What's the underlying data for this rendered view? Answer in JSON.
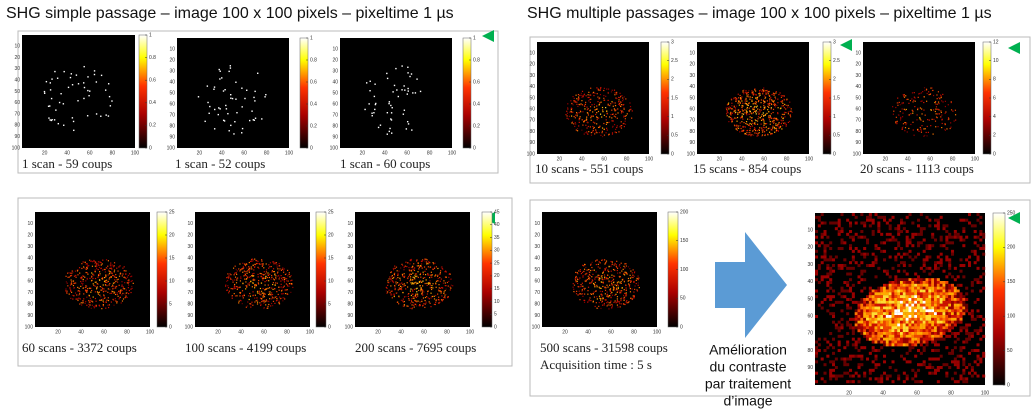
{
  "titles": {
    "left": "SHG simple passage – image 100 x 100 pixels – pixeltime 1 µs",
    "right": "SHG multiple passages – image 100 x 100 pixels – pixeltime 1 µs"
  },
  "axes": {
    "yticks": [
      10,
      20,
      30,
      40,
      50,
      60,
      70,
      80,
      90,
      100
    ],
    "xticks": [
      20,
      40,
      60,
      80,
      100
    ]
  },
  "panels": [
    {
      "caption": "1 scan  - 59 coups",
      "colorbar": [
        0,
        0.2,
        0.4,
        0.6,
        0.8,
        1
      ]
    },
    {
      "caption": "1 scan  - 52 coups",
      "colorbar": [
        0,
        0.2,
        0.4,
        0.6,
        0.8,
        1
      ]
    },
    {
      "caption": "1 scan  - 60 coups",
      "colorbar": [
        0,
        0.2,
        0.4,
        0.6,
        0.8,
        1
      ]
    },
    {
      "caption": "10 scans  - 551 coups",
      "colorbar": [
        0,
        0.5,
        1,
        1.5,
        2,
        2.5,
        3
      ]
    },
    {
      "caption": "15 scans  - 854 coups",
      "colorbar": [
        0,
        0.5,
        1,
        1.5,
        2,
        2.5,
        3
      ]
    },
    {
      "caption": "20 scans  - 1113 coups",
      "colorbar": [
        0,
        2,
        4,
        6,
        8,
        10,
        12
      ]
    },
    {
      "caption": "60 scans  - 3372  coups",
      "colorbar": [
        0,
        5,
        10,
        15,
        20,
        25
      ]
    },
    {
      "caption": "100 scans  - 4199 coups",
      "colorbar": [
        0,
        5,
        10,
        15,
        20,
        25
      ]
    },
    {
      "caption": "200 scans  - 7695 coups",
      "colorbar": [
        0,
        5,
        10,
        15,
        20,
        25,
        30,
        35,
        40,
        45
      ]
    },
    {
      "caption": "500 scans  - 31598 coups",
      "note": "Acquisition time :  5 s",
      "colorbar": [
        0,
        50,
        100,
        150,
        200
      ]
    },
    {
      "colorbar": [
        0,
        50,
        100,
        150,
        200,
        250
      ],
      "yticks": [
        10,
        20,
        30,
        40,
        50,
        60,
        70,
        80,
        90
      ],
      "xticks": [
        20,
        40,
        60,
        80,
        100
      ]
    }
  ],
  "enhancement": {
    "lines": [
      "Amélioration",
      "du contraste",
      "par traitement",
      "d’image"
    ]
  }
}
